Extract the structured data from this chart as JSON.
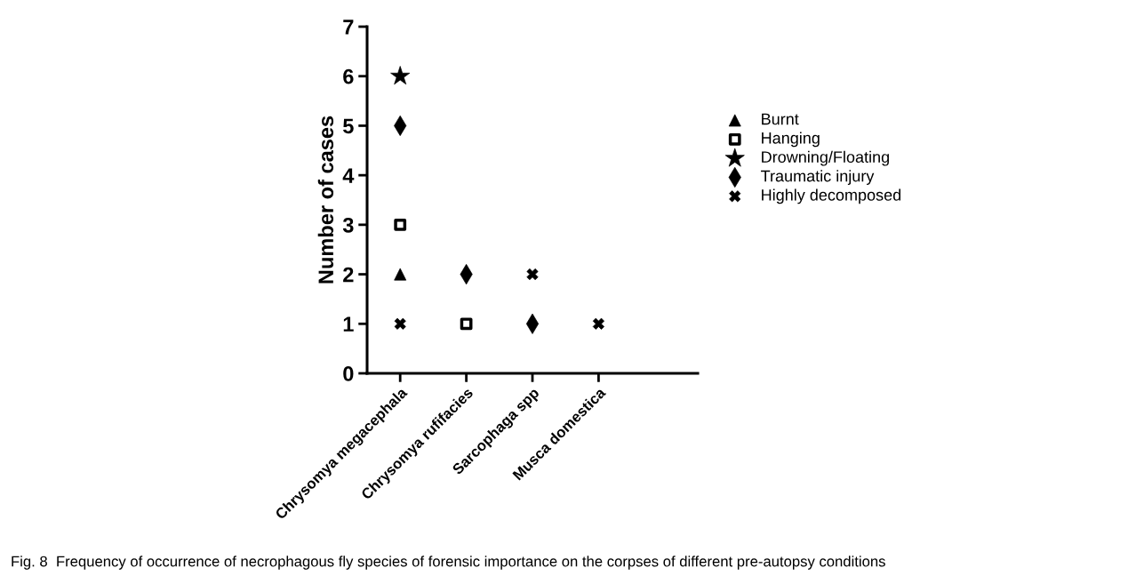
{
  "chart_data": {
    "type": "scatter",
    "ylabel": "Number of cases",
    "categories": [
      "Chrysomya megacephala",
      "Chrysomya rufifacies",
      "Sarcophaga spp",
      "Musca domestica",
      null
    ],
    "ylim": [
      0,
      7
    ],
    "yticks": [
      0,
      1,
      2,
      3,
      4,
      5,
      6,
      7
    ],
    "grid": false,
    "legend": "right",
    "series": [
      {
        "name": "Burnt",
        "color": "#000000",
        "marker": "triangle",
        "values": [
          2,
          null,
          null,
          null,
          null
        ]
      },
      {
        "name": "Hanging",
        "color": "#000000",
        "marker": "square",
        "values": [
          3,
          1,
          null,
          null,
          null
        ]
      },
      {
        "name": "Drowning/Floating",
        "color": "#000000",
        "marker": "star",
        "values": [
          6,
          null,
          null,
          null,
          null
        ]
      },
      {
        "name": "Traumatic injury",
        "color": "#000000",
        "marker": "diamond",
        "values": [
          5,
          2,
          1,
          null,
          null
        ]
      },
      {
        "name": "Highly decomposed",
        "color": "#000000",
        "marker": "cross",
        "values": [
          1,
          null,
          2,
          1,
          null
        ]
      }
    ],
    "annotations": [
      "Fig. 8  Frequency of occurrence of necrophagous fly species of forensic importance on the corpses of different pre-autopsy conditions"
    ]
  }
}
